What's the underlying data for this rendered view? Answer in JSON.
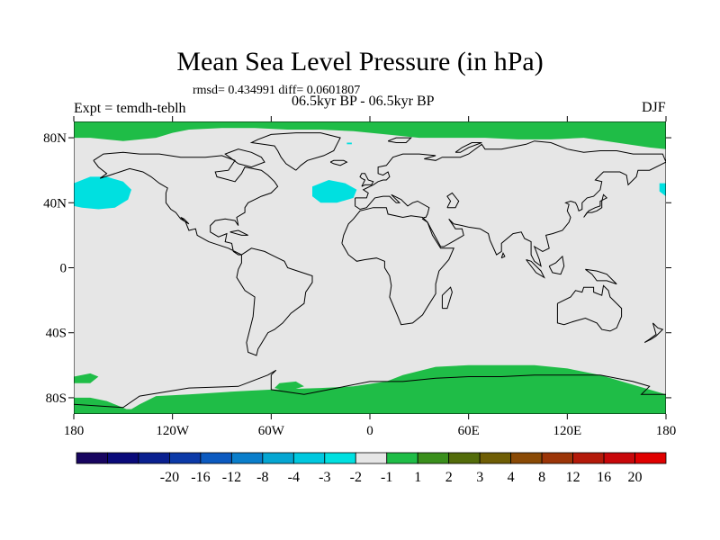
{
  "chart_data": {
    "type": "heatmap",
    "title": "Mean Sea Level Pressure (in hPa)",
    "stats_text": "rmsd= 0.434991 diff= 0.0601807",
    "period_text": "06.5kyr BP - 06.5kyr BP",
    "experiment_text": "Expt = temdh-teblh",
    "season": "DJF",
    "projection": "cylindrical equidistant",
    "lon_range": [
      -180,
      180
    ],
    "lat_range": [
      -90,
      90
    ],
    "x_ticks": [
      {
        "value": -180,
        "label": "180"
      },
      {
        "value": -120,
        "label": "120W"
      },
      {
        "value": -60,
        "label": "60W"
      },
      {
        "value": 0,
        "label": "0"
      },
      {
        "value": 60,
        "label": "60E"
      },
      {
        "value": 120,
        "label": "120E"
      },
      {
        "value": 180,
        "label": "180"
      }
    ],
    "y_ticks": [
      {
        "value": 80,
        "label": "80N"
      },
      {
        "value": 40,
        "label": "40N"
      },
      {
        "value": 0,
        "label": "0"
      },
      {
        "value": -40,
        "label": "40S"
      },
      {
        "value": -80,
        "label": "80S"
      }
    ],
    "background_color": "#e6e6e6",
    "regions": [
      {
        "name": "arctic-positive",
        "value_range": "1 to 2",
        "color": "#1fbd47",
        "points": [
          [
            -180,
            90
          ],
          [
            180,
            90
          ],
          [
            180,
            73
          ],
          [
            170,
            74
          ],
          [
            150,
            77
          ],
          [
            130,
            80
          ],
          [
            110,
            79
          ],
          [
            90,
            79
          ],
          [
            70,
            80
          ],
          [
            50,
            80
          ],
          [
            30,
            80
          ],
          [
            10,
            82
          ],
          [
            -10,
            84
          ],
          [
            -30,
            85
          ],
          [
            -50,
            85
          ],
          [
            -70,
            86
          ],
          [
            -90,
            86
          ],
          [
            -110,
            85
          ],
          [
            -120,
            83
          ],
          [
            -130,
            80
          ],
          [
            -150,
            78
          ],
          [
            -170,
            80
          ],
          [
            -180,
            80
          ]
        ]
      },
      {
        "name": "antarctic-positive-main",
        "value_range": "1 to 2",
        "color": "#1fbd47",
        "points": [
          [
            -180,
            -90
          ],
          [
            180,
            -90
          ],
          [
            180,
            -78
          ],
          [
            160,
            -72
          ],
          [
            140,
            -66
          ],
          [
            120,
            -62
          ],
          [
            100,
            -60
          ],
          [
            80,
            -60
          ],
          [
            60,
            -60
          ],
          [
            40,
            -61
          ],
          [
            20,
            -66
          ],
          [
            10,
            -70
          ],
          [
            -10,
            -73
          ],
          [
            -30,
            -74
          ],
          [
            -60,
            -75
          ],
          [
            -80,
            -76
          ],
          [
            -110,
            -78
          ],
          [
            -130,
            -79
          ],
          [
            -140,
            -84
          ],
          [
            -145,
            -87
          ],
          [
            -148,
            -87
          ],
          [
            -160,
            -82
          ],
          [
            -170,
            -80
          ],
          [
            -180,
            -80
          ]
        ]
      },
      {
        "name": "south-pacific-positive",
        "value_range": "1 to 2",
        "color": "#1fbd47",
        "points": [
          [
            -180,
            -67
          ],
          [
            -170,
            -65
          ],
          [
            -165,
            -67
          ],
          [
            -170,
            -71
          ],
          [
            -180,
            -71
          ]
        ]
      },
      {
        "name": "weddell-positive",
        "value_range": "1 to 2",
        "color": "#1fbd47",
        "points": [
          [
            -55,
            -71
          ],
          [
            -45,
            -70
          ],
          [
            -40,
            -73
          ],
          [
            -50,
            -76
          ],
          [
            -58,
            -74
          ]
        ]
      },
      {
        "name": "north-pacific-negative",
        "value_range": "-2 to -1",
        "color": "#00e0e0",
        "points": [
          [
            -180,
            52
          ],
          [
            -170,
            56
          ],
          [
            -160,
            56
          ],
          [
            -150,
            53
          ],
          [
            -145,
            48
          ],
          [
            -147,
            42
          ],
          [
            -155,
            37
          ],
          [
            -165,
            36
          ],
          [
            -175,
            37
          ],
          [
            -180,
            38
          ]
        ]
      },
      {
        "name": "north-pacific-negative-wrap",
        "value_range": "-2 to -1",
        "color": "#00e0e0",
        "points": [
          [
            176,
            52
          ],
          [
            180,
            52
          ],
          [
            180,
            44
          ],
          [
            176,
            47
          ]
        ]
      },
      {
        "name": "north-atlantic-negative",
        "value_range": "-2 to -1",
        "color": "#00e0e0",
        "points": [
          [
            -35,
            50
          ],
          [
            -25,
            54
          ],
          [
            -15,
            52
          ],
          [
            -8,
            48
          ],
          [
            -10,
            43
          ],
          [
            -20,
            40
          ],
          [
            -30,
            40
          ],
          [
            -35,
            44
          ]
        ]
      },
      {
        "name": "greenland-negative-spot",
        "value_range": "-2 to -1",
        "color": "#00e0e0",
        "points": [
          [
            -14,
            77
          ],
          [
            -11,
            77
          ],
          [
            -11,
            76
          ],
          [
            -14,
            76
          ]
        ]
      }
    ],
    "colorbar": {
      "colors": [
        "#180560",
        "#0a0a7a",
        "#0a2090",
        "#0c3aa8",
        "#0c5ac0",
        "#0a7ecb",
        "#05a6d2",
        "#00c8df",
        "#00e0e0",
        "#e6e6e6",
        "#1fbd47",
        "#3a8f1c",
        "#536c0a",
        "#6f5e05",
        "#8a4a05",
        "#9c3508",
        "#b41a0a",
        "#c8070a",
        "#e00000"
      ],
      "labels": [
        "-20",
        "-16",
        "-12",
        "-8",
        "-4",
        "-3",
        "-2",
        "-1",
        "1",
        "2",
        "3",
        "4",
        "8",
        "12",
        "16",
        "20"
      ]
    }
  }
}
